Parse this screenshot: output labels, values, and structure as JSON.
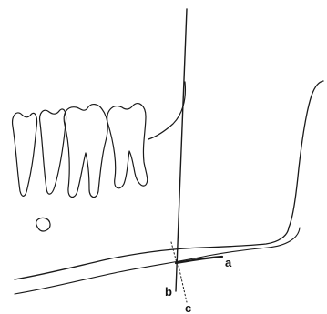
{
  "labels": {
    "a": "a",
    "b": "b",
    "c": "c"
  },
  "colors": {
    "line": "#1a1a1a",
    "label": "#111111",
    "background": "#ffffff"
  }
}
